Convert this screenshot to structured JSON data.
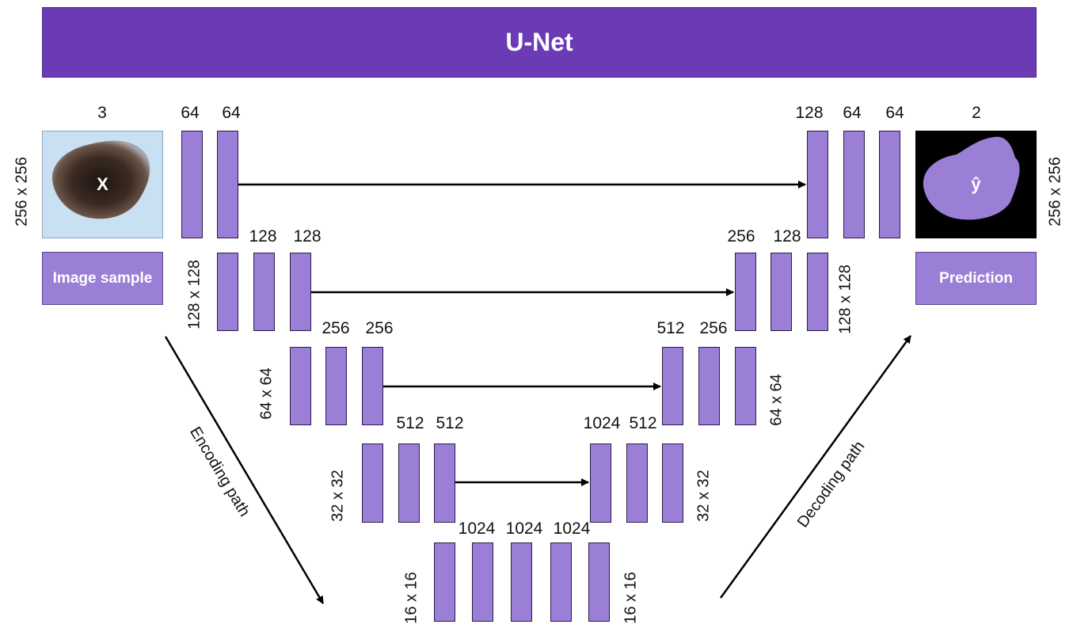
{
  "title": "U-Net",
  "input": {
    "label": "Image sample",
    "symbol": "X",
    "channels": "3",
    "size": "256 x 256",
    "color": "#c9e0f2"
  },
  "output": {
    "label": "Prediction",
    "symbol": "ŷ",
    "channels": "2",
    "size": "256 x 256",
    "color": "#000000"
  },
  "encoding_path_label": "Encoding path",
  "decoding_path_label": "Decoding path",
  "feature_map_color": "#9b7ed6",
  "levels": [
    {
      "encoder_channels": [
        "64",
        "64"
      ],
      "decoder_channels": [
        "128",
        "64",
        "64"
      ],
      "encoder_size": "",
      "decoder_size": ""
    },
    {
      "encoder_channels": [
        "128",
        "128"
      ],
      "decoder_channels": [
        "256",
        "128"
      ],
      "encoder_size": "128 x 128",
      "decoder_size": "128 x 128"
    },
    {
      "encoder_channels": [
        "256",
        "256"
      ],
      "decoder_channels": [
        "512",
        "256"
      ],
      "encoder_size": "64 x 64",
      "decoder_size": "64 x 64"
    },
    {
      "encoder_channels": [
        "512",
        "512"
      ],
      "decoder_channels": [
        "1024",
        "512"
      ],
      "encoder_size": "32 x 32",
      "decoder_size": "32 x 32"
    }
  ],
  "bottleneck": {
    "channels": [
      "1024",
      "1024",
      "1024"
    ],
    "size_left": "16 x 16",
    "size_right": "16 x 16"
  }
}
